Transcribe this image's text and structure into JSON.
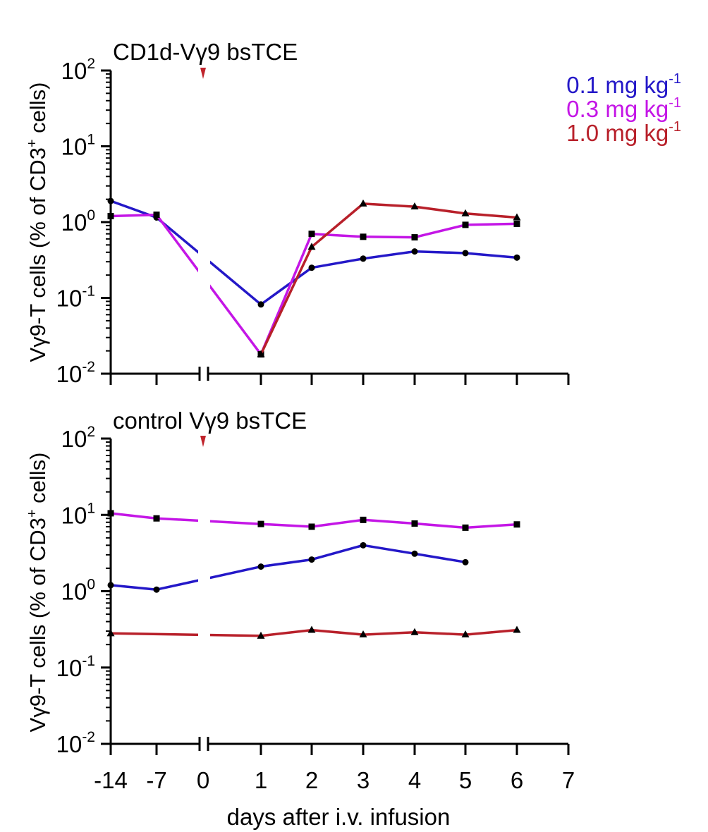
{
  "x_axis": {
    "label": "days after i.v. infusion",
    "ticks": [
      -14,
      -7,
      0,
      1,
      2,
      3,
      4,
      5,
      6,
      7
    ]
  },
  "y_axis": {
    "label": "Vγ9-T cells (% of CD3⁺ cells)",
    "label_parts": [
      "Vγ9-T cells (% of CD3",
      "+",
      " cells)"
    ],
    "ticks": [
      {
        "value": 0.01,
        "base": "10",
        "exp": "-2"
      },
      {
        "value": 0.1,
        "base": "10",
        "exp": "-1"
      },
      {
        "value": 1,
        "base": "10",
        "exp": "0"
      },
      {
        "value": 10,
        "base": "10",
        "exp": "1"
      },
      {
        "value": 100,
        "base": "10",
        "exp": "2"
      }
    ],
    "scale": "log",
    "range": [
      0.01,
      100
    ]
  },
  "legend": {
    "placement": "top-right",
    "entries": [
      {
        "text": "0.1 mg kg",
        "sup": "-1",
        "color": "#2418c8"
      },
      {
        "text": "0.3 mg kg",
        "sup": "-1",
        "color": "#c416e6"
      },
      {
        "text": "1.0 mg kg",
        "sup": "-1",
        "color": "#b8202a"
      }
    ]
  },
  "infusion_marker_color": "#c0242c",
  "chart_data": [
    {
      "type": "line",
      "title": "CD1d-Vγ9 bsTCE",
      "x_categories": [
        -14,
        -7,
        0,
        1,
        2,
        3,
        4,
        5,
        6,
        7
      ],
      "yscale": "log",
      "ylim": [
        0.01,
        100
      ],
      "series": [
        {
          "dose": "0.1 mg kg-1",
          "color": "#2418c8",
          "marker": "circle",
          "x": [
            -14,
            -7,
            1,
            2,
            3,
            4,
            5,
            6
          ],
          "y": [
            1.9,
            1.15,
            0.082,
            0.25,
            0.33,
            0.41,
            0.39,
            0.34
          ]
        },
        {
          "dose": "0.3 mg kg-1",
          "color": "#c416e6",
          "marker": "square",
          "x": [
            -14,
            -7,
            1,
            2,
            3,
            4,
            5,
            6
          ],
          "y": [
            1.2,
            1.25,
            0.018,
            0.7,
            0.64,
            0.63,
            0.92,
            0.95
          ]
        },
        {
          "dose": "1.0 mg kg-1",
          "color": "#b8202a",
          "marker": "triangle",
          "x": [
            1,
            2,
            3,
            4,
            5,
            6
          ],
          "y": [
            0.018,
            0.47,
            1.75,
            1.6,
            1.3,
            1.15
          ]
        }
      ]
    },
    {
      "type": "line",
      "title": "control Vγ9 bsTCE",
      "x_categories": [
        -14,
        -7,
        0,
        1,
        2,
        3,
        4,
        5,
        6,
        7
      ],
      "yscale": "log",
      "ylim": [
        0.01,
        100
      ],
      "series": [
        {
          "dose": "0.1 mg kg-1",
          "color": "#2418c8",
          "marker": "circle",
          "x": [
            -14,
            -7,
            1,
            2,
            3,
            4,
            5
          ],
          "y": [
            1.2,
            1.05,
            2.1,
            2.6,
            4.0,
            3.1,
            2.4
          ]
        },
        {
          "dose": "0.3 mg kg-1",
          "color": "#c416e6",
          "marker": "square",
          "x": [
            -14,
            -7,
            1,
            2,
            3,
            4,
            5,
            6
          ],
          "y": [
            10.5,
            9.0,
            7.6,
            7.0,
            8.6,
            7.7,
            6.8,
            7.5
          ]
        },
        {
          "dose": "1.0 mg kg-1",
          "color": "#b8202a",
          "marker": "triangle",
          "x": [
            -14,
            1,
            2,
            3,
            4,
            5,
            6
          ],
          "y": [
            0.28,
            0.26,
            0.31,
            0.27,
            0.29,
            0.27,
            0.31
          ]
        }
      ]
    }
  ]
}
